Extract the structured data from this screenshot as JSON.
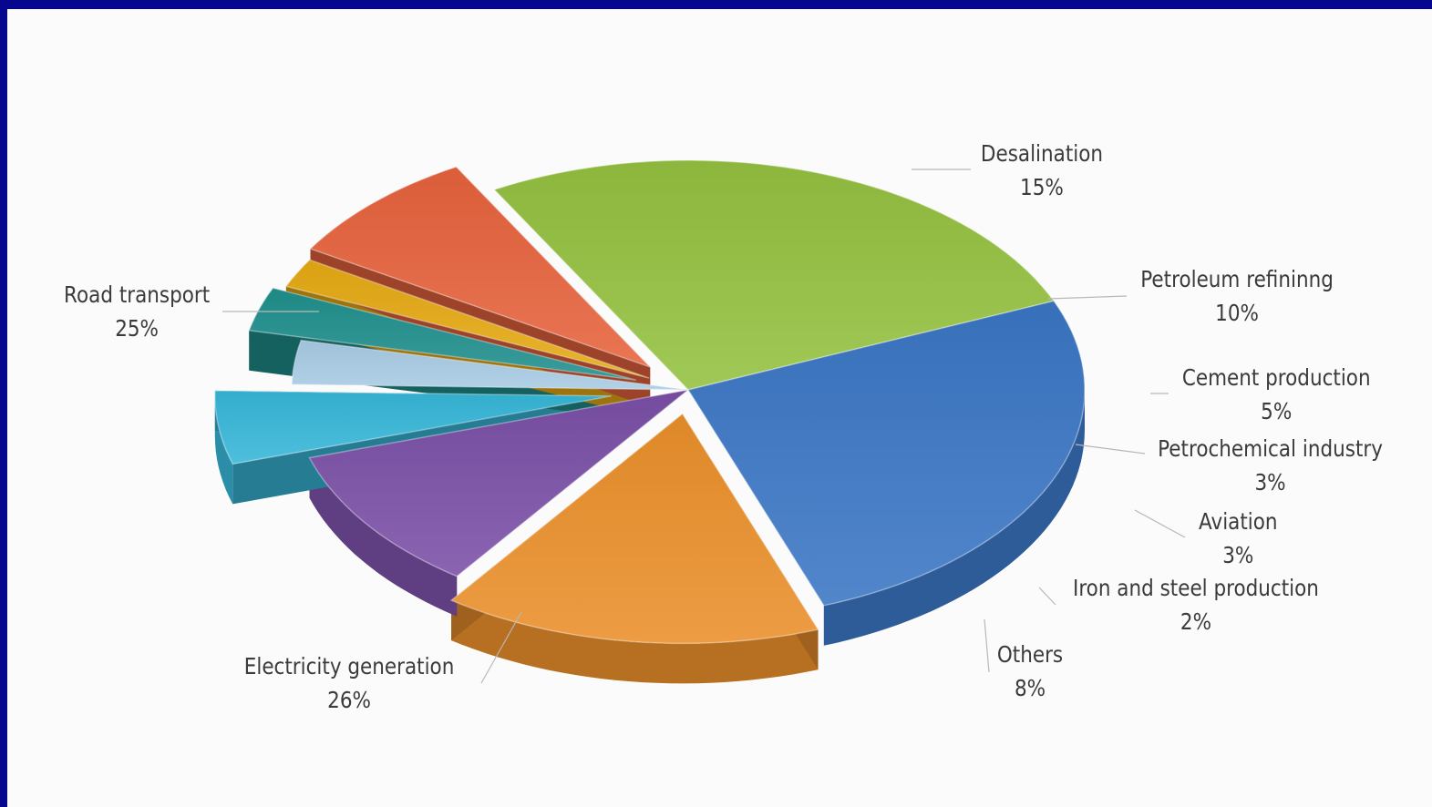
{
  "chart_data": {
    "type": "pie",
    "title": "",
    "categories": [
      "Desalination",
      "Petroleum refininng",
      "Cement production",
      "Petrochemical industry",
      "Aviation",
      "Iron and steel production",
      "Others",
      "Electricity generation",
      "Road transport"
    ],
    "values": [
      15,
      10,
      5,
      3,
      3,
      2,
      8,
      26,
      25
    ],
    "value_labels": [
      "15%",
      "10%",
      "5%",
      "3%",
      "3%",
      "2%",
      "8%",
      "26%",
      "25%"
    ],
    "colors": [
      "#ea8f2a",
      "#7a4fa6",
      "#36b6d8",
      "#a7cbe4",
      "#1f8f8c",
      "#e5a913",
      "#e6623c",
      "#93c03f",
      "#3a76c4"
    ],
    "exploded": [
      "Desalination",
      "Cement production",
      "Aviation",
      "Iron and steel production",
      "Others"
    ],
    "legend": "none",
    "style": "3d"
  }
}
